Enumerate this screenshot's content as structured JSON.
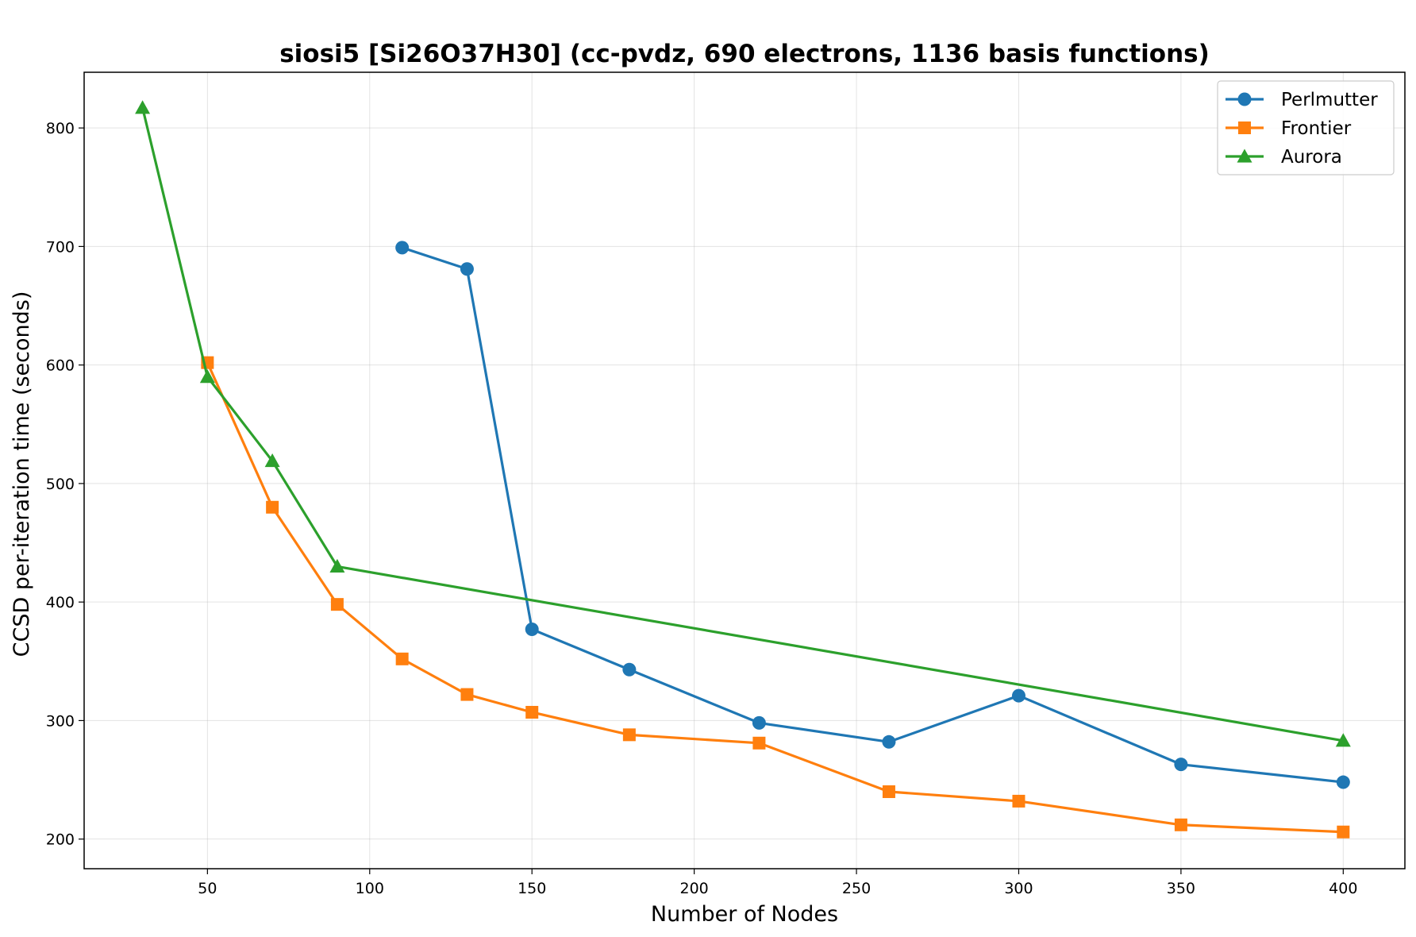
{
  "chart_data": {
    "type": "line",
    "title": "siosi5 [Si26O37H30] (cc-pvdz, 690 electrons, 1136 basis functions)",
    "xlabel": "Number of Nodes",
    "ylabel": "CCSD per-iteration time (seconds)",
    "xlim": [
      12,
      419
    ],
    "ylim": [
      175,
      847
    ],
    "xticks": [
      50,
      100,
      150,
      200,
      250,
      300,
      350,
      400
    ],
    "yticks": [
      200,
      300,
      400,
      500,
      600,
      700,
      800
    ],
    "grid": true,
    "legend_position": "top-right",
    "series": [
      {
        "name": "Perlmutter",
        "color": "#1f77b4",
        "marker": "circle",
        "x": [
          110,
          130,
          150,
          180,
          220,
          260,
          300,
          350,
          400
        ],
        "y": [
          699,
          681,
          377,
          343,
          298,
          282,
          321,
          263,
          248
        ]
      },
      {
        "name": "Frontier",
        "color": "#ff7f0e",
        "marker": "square",
        "x": [
          50,
          70,
          90,
          110,
          130,
          150,
          180,
          220,
          260,
          300,
          350,
          400
        ],
        "y": [
          602,
          480,
          398,
          352,
          322,
          307,
          288,
          281,
          240,
          232,
          212,
          206
        ]
      },
      {
        "name": "Aurora",
        "color": "#2ca02c",
        "marker": "triangle",
        "x": [
          30,
          50,
          70,
          90,
          400
        ],
        "y": [
          817,
          590,
          519,
          430,
          283
        ]
      }
    ]
  }
}
